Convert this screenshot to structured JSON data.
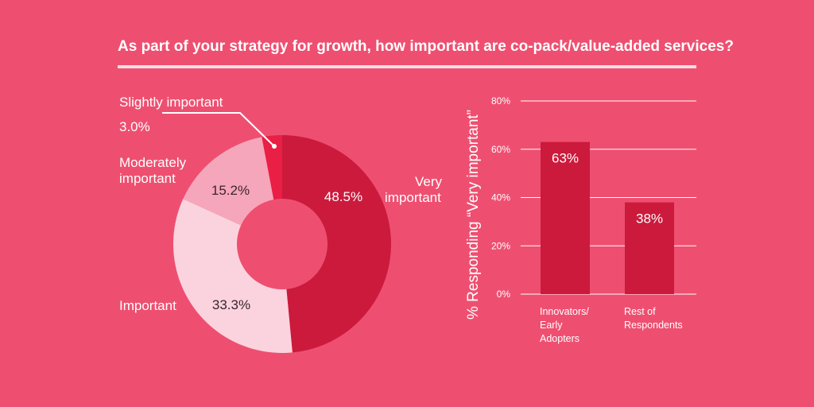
{
  "title": "As part of your strategy for growth, how important are co-pack/value-added services?",
  "colors": {
    "background": "#ee4f70",
    "very_important": "#cc1a3c",
    "important": "#fbd3de",
    "moderately_important": "#f6a6ba",
    "slightly_important": "#e91f45",
    "grid": "#ffffff",
    "bar": "#cc1a3c"
  },
  "chart_data": [
    {
      "type": "pie",
      "donut": true,
      "slices": [
        {
          "label": "Very important",
          "value": 48.5,
          "value_label": "48.5%"
        },
        {
          "label": "Important",
          "value": 33.3,
          "value_label": "33.3%"
        },
        {
          "label": "Moderately important",
          "value": 15.2,
          "value_label": "15.2%"
        },
        {
          "label": "Slightly important",
          "value": 3.0,
          "value_label": "3.0%"
        }
      ],
      "label_lines": {
        "very": [
          "Very",
          "important"
        ],
        "important": [
          "Important"
        ],
        "moderately": [
          "Moderately",
          "important"
        ],
        "slightly": [
          "Slightly important"
        ]
      }
    },
    {
      "type": "bar",
      "categories": [
        "Innovators/ Early Adopters",
        "Rest of Respondents"
      ],
      "category_lines": [
        [
          "Innovators/",
          "Early",
          "Adopters"
        ],
        [
          "Rest of",
          "Respondents"
        ]
      ],
      "values": [
        63,
        38
      ],
      "value_labels": [
        "63%",
        "38%"
      ],
      "ylabel": "% Responding “Very important”",
      "ylim": [
        0,
        80
      ],
      "yticks": [
        0,
        20,
        40,
        60,
        80
      ],
      "ytick_labels": [
        "0%",
        "20%",
        "40%",
        "60%",
        "80%"
      ],
      "grid": true
    }
  ]
}
